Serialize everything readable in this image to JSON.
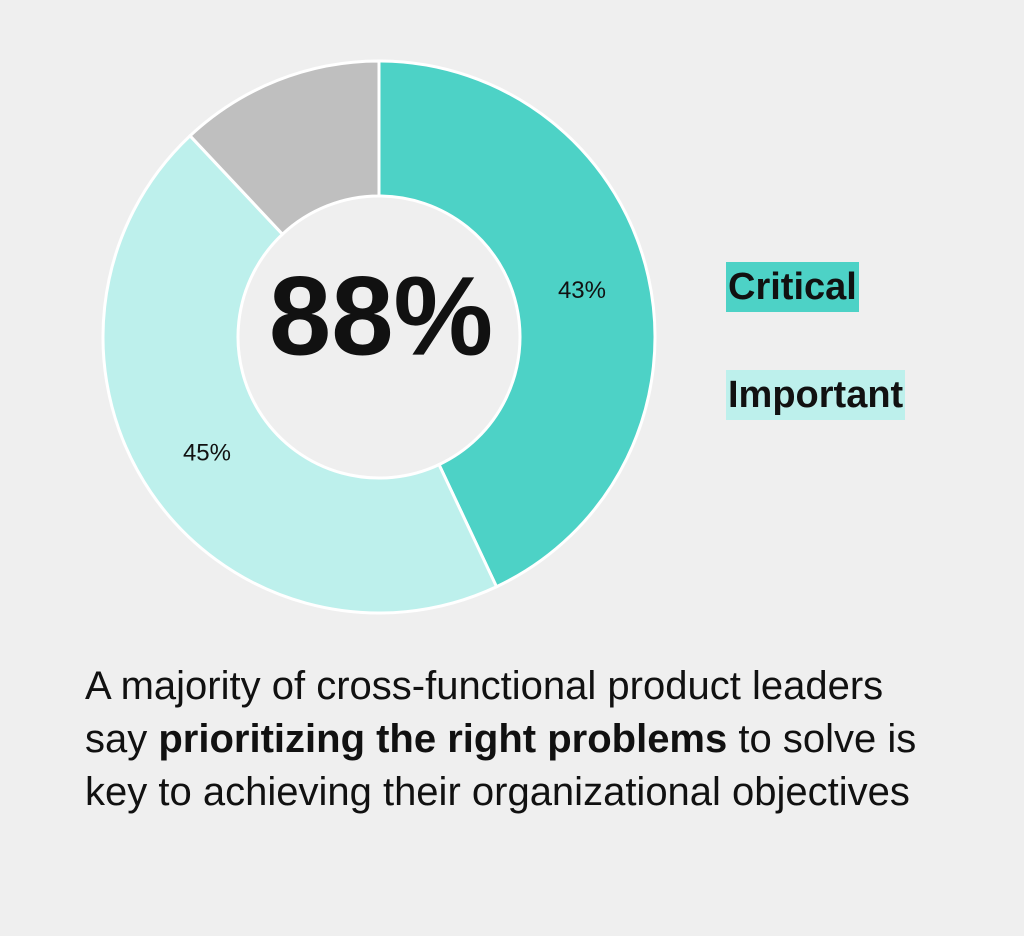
{
  "chart_data": {
    "type": "donut",
    "categories": [
      "Critical",
      "Important",
      null
    ],
    "values": [
      43,
      45,
      12
    ],
    "value_labels": [
      "43%",
      "45%",
      null
    ],
    "colors": [
      "#4dd2c6",
      "#bdf0ec",
      "#bfbfbf"
    ],
    "center_label": "88%"
  },
  "caption": [
    "A majority of cross-functional product leaders say ",
    "prioritizing the right problems",
    " to solve is key to achieving their organizational objectives"
  ]
}
